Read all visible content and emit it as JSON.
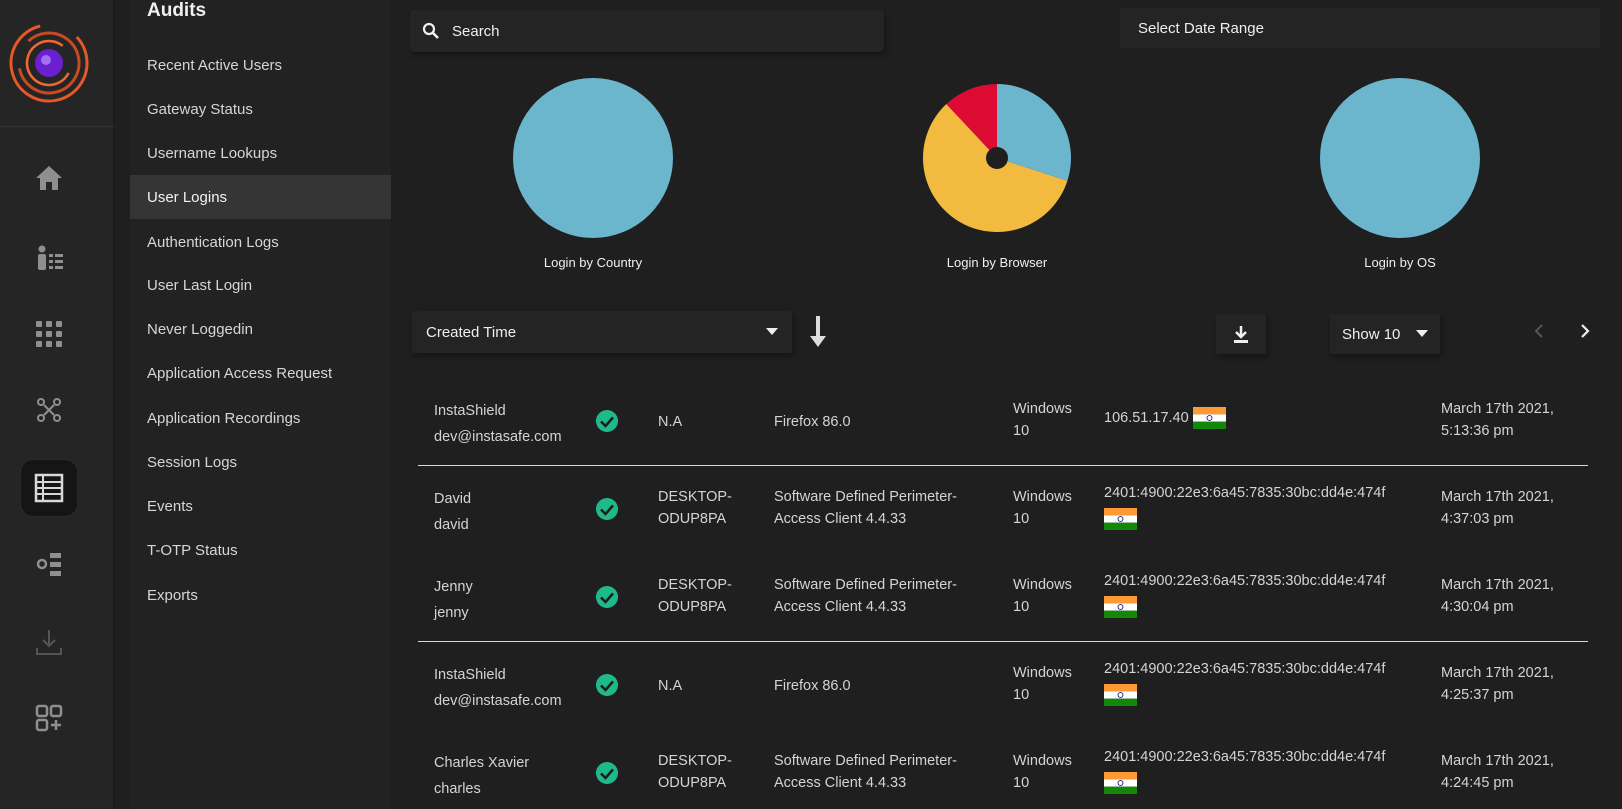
{
  "audits_title": "Audits",
  "menu": [
    "Recent Active Users",
    "Gateway Status",
    "Username Lookups",
    "User Logins",
    "Authentication Logs",
    "User Last Login",
    "Never Loggedin",
    "Application Access Request",
    "Application Recordings",
    "Session Logs",
    "Events",
    "T-OTP Status",
    "Exports"
  ],
  "active_menu": "User Logins",
  "rail_icons": [
    "home-icon",
    "user-list-icon",
    "grid-dots-icon",
    "users-network-icon",
    "audit-log-icon",
    "settings-tree-icon",
    "download-icon",
    "add-apps-icon"
  ],
  "search": {
    "label": "Search"
  },
  "date_range": {
    "label": "Select Date Range"
  },
  "charts": [
    {
      "caption": "Login by Country"
    },
    {
      "caption": "Login by Browser"
    },
    {
      "caption": "Login by OS"
    }
  ],
  "chart_data": [
    {
      "type": "pie",
      "title": "Login by Country",
      "slices": [
        {
          "value": 100,
          "color": "#6bb5cd"
        }
      ]
    },
    {
      "type": "pie",
      "title": "Login by Browser",
      "slices": [
        {
          "value": 30,
          "color": "#6bb5cd"
        },
        {
          "value": 58,
          "color": "#f2bb40"
        },
        {
          "value": 12,
          "color": "#dd0a33"
        }
      ]
    },
    {
      "type": "pie",
      "title": "Login by OS",
      "slices": [
        {
          "value": 100,
          "color": "#6bb5cd"
        }
      ]
    }
  ],
  "sort": {
    "label": "Created Time"
  },
  "show": {
    "label": "Show 10"
  },
  "rows": [
    {
      "name": "InstaShield",
      "user": "dev@instasafe.com",
      "host": "N.A",
      "host2": "",
      "client": "Firefox 86.0",
      "client2": "",
      "os": "Windows",
      "os2": "10",
      "ip": "106.51.17.40",
      "date": "March 17th 2021,",
      "time": "5:13:36 pm"
    },
    {
      "name": "David",
      "user": "david",
      "host": "DESKTOP-",
      "host2": "ODUP8PA",
      "client": "Software Defined Perimeter-",
      "client2": "Access Client 4.4.33",
      "os": "Windows",
      "os2": "10",
      "ip": "2401:4900:22e3:6a45:7835:30bc:dd4e:474f",
      "date": "March 17th 2021,",
      "time": "4:37:03 pm"
    },
    {
      "name": "Jenny",
      "user": "jenny",
      "host": "DESKTOP-",
      "host2": "ODUP8PA",
      "client": "Software Defined Perimeter-",
      "client2": "Access Client 4.4.33",
      "os": "Windows",
      "os2": "10",
      "ip": "2401:4900:22e3:6a45:7835:30bc:dd4e:474f",
      "date": "March 17th 2021,",
      "time": "4:30:04 pm"
    },
    {
      "name": "InstaShield",
      "user": "dev@instasafe.com",
      "host": "N.A",
      "host2": "",
      "client": "Firefox 86.0",
      "client2": "",
      "os": "Windows",
      "os2": "10",
      "ip": "2401:4900:22e3:6a45:7835:30bc:dd4e:474f",
      "date": "March 17th 2021,",
      "time": "4:25:37 pm"
    },
    {
      "name": "Charles Xavier",
      "user": "charles",
      "host": "DESKTOP-",
      "host2": "ODUP8PA",
      "client": "Software Defined Perimeter-",
      "client2": "Access Client 4.4.33",
      "os": "Windows",
      "os2": "10",
      "ip": "2401:4900:22e3:6a45:7835:30bc:dd4e:474f",
      "date": "March 17th 2021,",
      "time": "4:24:45 pm"
    }
  ],
  "colors": {
    "accent": "#e8572a",
    "success": "#1fb98a",
    "pie_blue": "#6bb5cd"
  }
}
